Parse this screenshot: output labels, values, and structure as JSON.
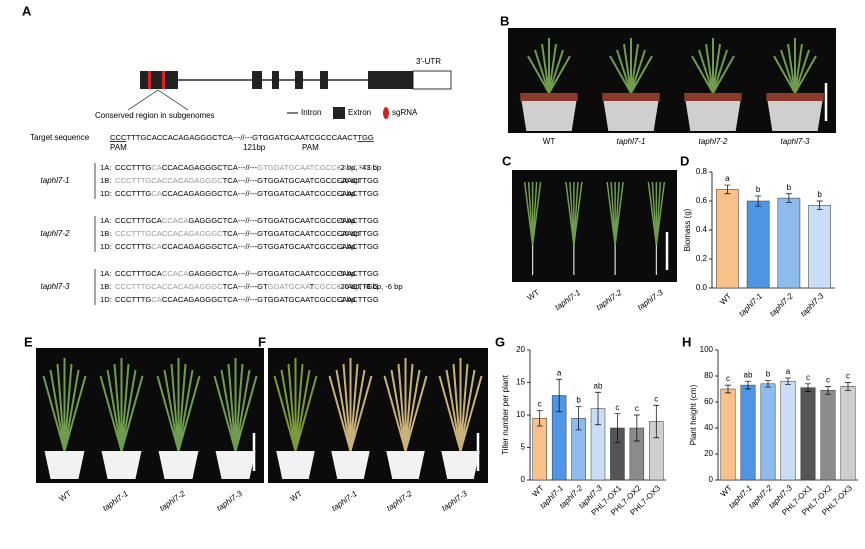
{
  "panel_a": {
    "label": "A",
    "utr": "3'-UTR",
    "conserved": "Conserved region in subgenomes",
    "legend": [
      "Intron",
      "Extron",
      "sgRNA"
    ],
    "target_label": "Target sequence",
    "target": [
      {
        "text": "CCC",
        "underline": true
      },
      {
        "text": "TTTGCACCACAGAGGGCTCA---//---GTGGATGCAATCGCCCAACT"
      },
      {
        "text": "TGG",
        "underline": true
      }
    ],
    "pam_left": "PAM",
    "gap": "121bp",
    "pam_right": "PAM",
    "groups": [
      {
        "name": "taphl7-1",
        "rows": [
          {
            "genome": "1A:",
            "segments": [
              {
                "text": "CCCTTTG"
              },
              {
                "text": "CA",
                "muted": true
              },
              {
                "text": "CCACAGAGGGCTCA---//---"
              },
              {
                "text": "GTGGATGCAATCGCCCAACTTGG",
                "muted": true
              }
            ],
            "note": "-2 bp, -43 bp"
          },
          {
            "genome": "1B:",
            "segments": [
              {
                "text": "CCCTTTGCACCACAGAGGGC",
                "muted": true
              },
              {
                "text": "TCA---//---GTGGATGCAATCGCCCAACTTGG"
              }
            ],
            "note": "-26 bp"
          },
          {
            "genome": "1D:",
            "segments": [
              {
                "text": "CCCTTTG"
              },
              {
                "text": "CA",
                "muted": true
              },
              {
                "text": "CCACAGAGGGCTCA---//---GTGGATGCAATCGCCCAACTTGG"
              }
            ],
            "note": "-2 bp"
          }
        ]
      },
      {
        "name": "taphl7-2",
        "rows": [
          {
            "genome": "1A:",
            "segments": [
              {
                "text": "CCCTTTGCA"
              },
              {
                "text": "CCACA",
                "muted": true
              },
              {
                "text": "GAGGGCTCA---//---GTGGATGCAATCGCCCAACTTGG"
              }
            ],
            "note": "-5 bp"
          },
          {
            "genome": "1B:",
            "segments": [
              {
                "text": "CCCTTTGCACCACAGAGGGC",
                "muted": true
              },
              {
                "text": "TCA---//---GTGGATGCAATCGCCCAACTTGG"
              }
            ],
            "note": "-26 bp"
          },
          {
            "genome": "1D:",
            "segments": [
              {
                "text": "CCCTTTG"
              },
              {
                "text": "CA",
                "muted": true
              },
              {
                "text": "CCACAGAGGGCTCA---//---GTGGATGCAATCGCCCAACTTGG"
              }
            ],
            "note": "-2 bp"
          }
        ]
      },
      {
        "name": "taphl7-3",
        "rows": [
          {
            "genome": "1A:",
            "segments": [
              {
                "text": "CCCTTTGCA"
              },
              {
                "text": "CCACA",
                "muted": true
              },
              {
                "text": "GAGGGCTCA---//---GTGGATGCAATCGCCCAACTTGG"
              }
            ],
            "note": "-5 bp"
          },
          {
            "genome": "1B:",
            "segments": [
              {
                "text": "CCCTTTGCACCACAGAGGGC",
                "muted": true
              },
              {
                "text": "TCA---//---GT"
              },
              {
                "text": "GGATGCAA",
                "muted": true
              },
              {
                "text": "T"
              },
              {
                "text": "CGCCCA",
                "muted": true
              },
              {
                "text": "ACTTGG"
              }
            ],
            "note": "-26 bp, -8 bp, -6 bp"
          },
          {
            "genome": "1D:",
            "segments": [
              {
                "text": "CCCTTTG"
              },
              {
                "text": "CA",
                "muted": true
              },
              {
                "text": "CCACAGAGGGCTCA---//---GTGGATGCAATCGCCCAACTTGG"
              }
            ],
            "note": "-2 bp"
          }
        ]
      }
    ]
  },
  "photos": [
    {
      "label": "B",
      "labels": [
        "WT",
        "taphl7-1",
        "taphl7-2",
        "taphl7-3"
      ]
    },
    {
      "label": "C",
      "labels": [
        "WT",
        "taphl7-1",
        "taphl7-2",
        "taphl7-3"
      ]
    },
    {
      "label": "E",
      "labels": [
        "WT",
        "taphl7-1",
        "taphl7-2",
        "taphl7-3"
      ]
    },
    {
      "label": "F",
      "labels": [
        "WT",
        "taphl7-1",
        "taphl7-2",
        "taphl7-3"
      ]
    }
  ],
  "chart_data": [
    {
      "type": "bar",
      "label": "D",
      "ylabel": "Biomass (g)",
      "categories": [
        "WT",
        "taphl7-1",
        "taphl7-2",
        "taphl7-3"
      ],
      "values": [
        0.68,
        0.6,
        0.62,
        0.57
      ],
      "errors": [
        0.03,
        0.035,
        0.03,
        0.03
      ],
      "letters": [
        "a",
        "b",
        "b",
        "b"
      ],
      "colors": [
        "#f8c18a",
        "#4f95e6",
        "#8ebbee",
        "#c9def6"
      ],
      "ylim": [
        0,
        0.8
      ],
      "yticks": [
        {
          "value": 0,
          "label": "0.0"
        },
        0.2,
        0.4,
        0.6,
        0.8
      ]
    },
    {
      "type": "bar",
      "label": "G",
      "ylabel": "Tiller number per plant",
      "categories": [
        "WT",
        "taphl7-1",
        "taphl7-2",
        "taphl7-3",
        "PHL7-OX1",
        "PHL7-OX2",
        "PHL7-OX3"
      ],
      "values": [
        9.5,
        13,
        9.5,
        11,
        8,
        8,
        9
      ],
      "errors": [
        1.2,
        2.5,
        1.8,
        2.5,
        2.2,
        2,
        2.5
      ],
      "letters": [
        "c",
        "a",
        "b",
        "ab",
        "c",
        "c",
        "c"
      ],
      "colors": [
        "#f8c18a",
        "#4f95e6",
        "#8ebbee",
        "#c9def6",
        "#555555",
        "#8c8c8c",
        "#cfcfcf"
      ],
      "ylim": [
        0,
        20
      ],
      "yticks": [
        0,
        5,
        10,
        15,
        20
      ]
    },
    {
      "type": "bar",
      "label": "H",
      "ylabel": "Plant height (cm)",
      "categories": [
        "WT",
        "taphl7-1",
        "taphl7-2",
        "taphl7-3",
        "PHL7-OX1",
        "PHL7-OX2",
        "PHL7-OX3"
      ],
      "values": [
        70,
        73,
        74,
        76,
        71,
        69,
        72
      ],
      "errors": [
        3,
        3,
        2.5,
        2.5,
        3,
        3,
        3
      ],
      "letters": [
        "c",
        "ab",
        "b",
        "a",
        "c",
        "c",
        "c"
      ],
      "colors": [
        "#f8c18a",
        "#4f95e6",
        "#8ebbee",
        "#c9def6",
        "#555555",
        "#8c8c8c",
        "#cfcfcf"
      ],
      "ylim": [
        0,
        100
      ],
      "yticks": [
        0,
        20,
        40,
        60,
        80,
        100
      ]
    }
  ]
}
